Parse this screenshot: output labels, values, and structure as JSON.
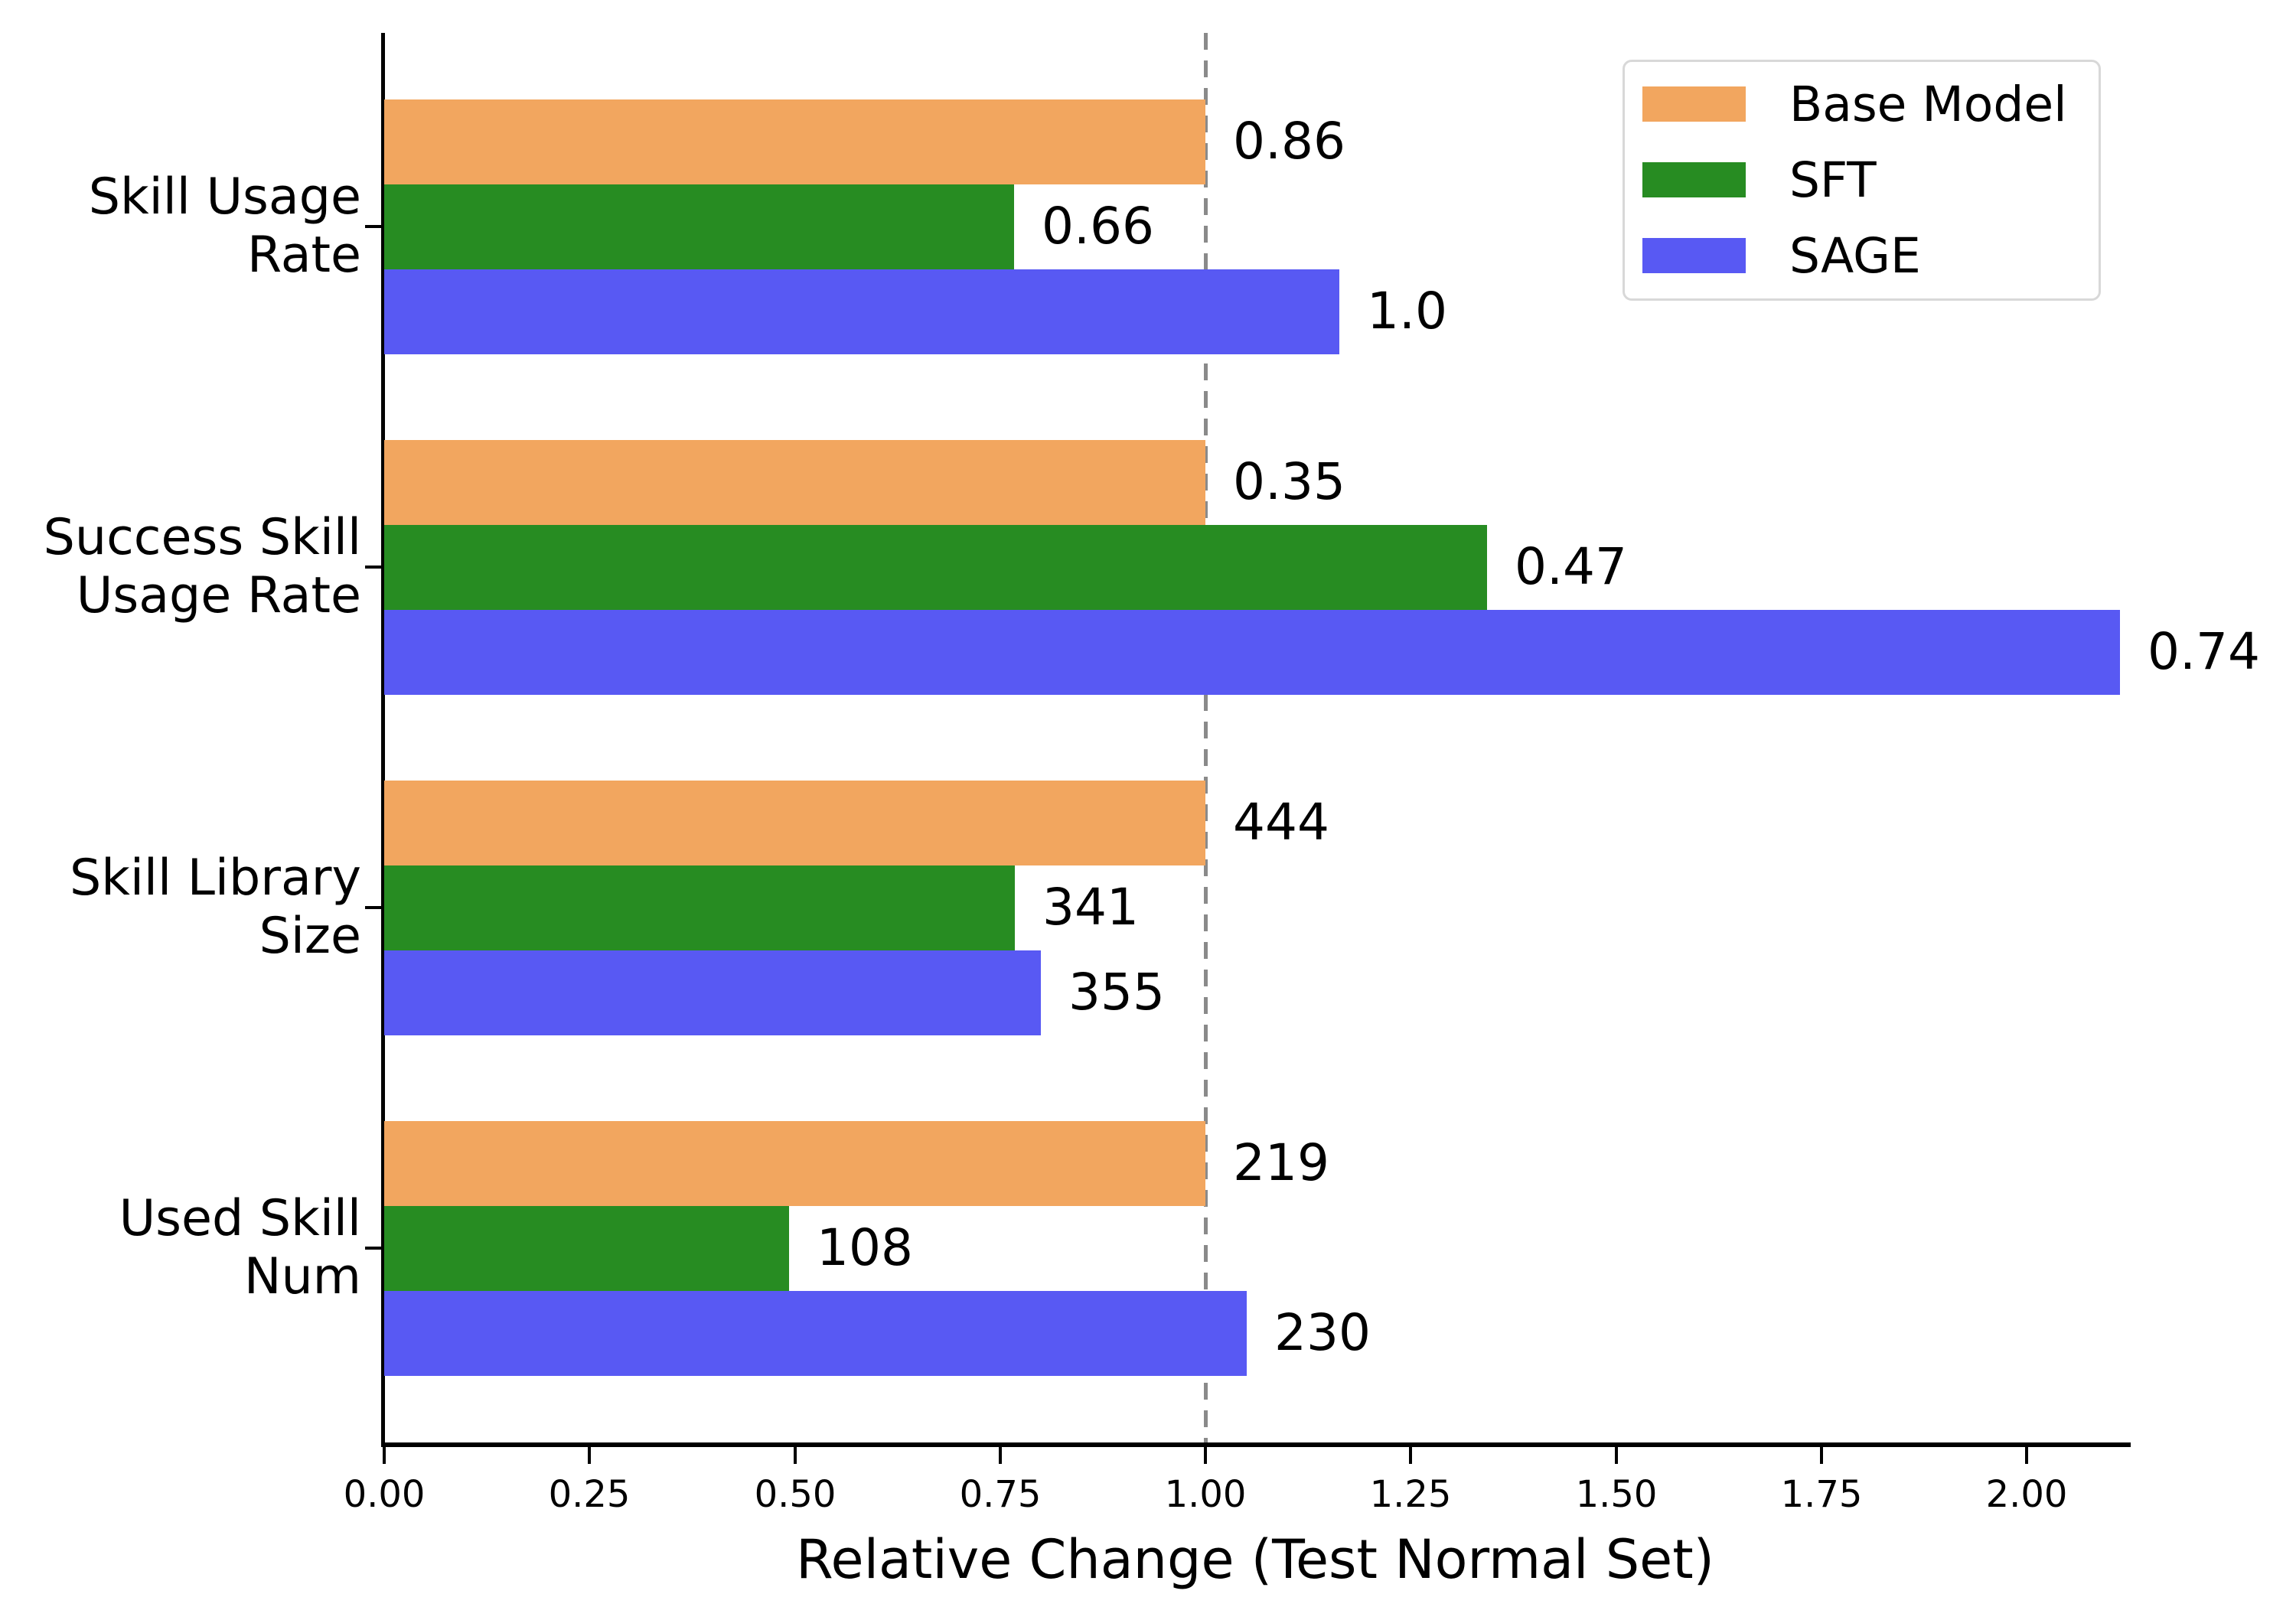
{
  "chart_data": {
    "type": "bar",
    "orientation": "horizontal",
    "xlabel": "Relative Change (Test Normal Set)",
    "xlim": [
      0,
      2.12
    ],
    "grid": "off",
    "background": "#FFFFFF",
    "text_color": "#000000",
    "categories": [
      "Skill Usage Rate",
      "Success Skill Usage Rate",
      "Skill Library Size",
      "Used Skill Num"
    ],
    "category_label_lines": [
      [
        "Skill Usage",
        "Rate"
      ],
      [
        "Success Skill",
        "Usage Rate"
      ],
      [
        "Skill Library",
        "Size"
      ],
      [
        "Used Skill",
        "Num"
      ]
    ],
    "x_ticks": {
      "values": [
        0,
        0.25,
        0.5,
        0.75,
        1.0,
        1.25,
        1.5,
        1.75,
        2.0
      ],
      "labels": [
        "0.00",
        "0.25",
        "0.50",
        "0.75",
        "1.00",
        "1.25",
        "1.50",
        "1.75",
        "2.00"
      ]
    },
    "series": [
      {
        "name": "Base Model",
        "color": "#F2A65F",
        "relative_change": [
          1.0,
          1.0,
          1.0,
          1.0
        ],
        "value_labels": [
          "0.86",
          "0.35",
          "444",
          "219"
        ]
      },
      {
        "name": "SFT",
        "color": "#278C22",
        "relative_change": [
          0.767,
          1.343,
          0.768,
          0.493
        ],
        "value_labels": [
          "0.66",
          "0.47",
          "341",
          "108"
        ]
      },
      {
        "name": "SAGE",
        "color": "#5859F3",
        "relative_change": [
          1.163,
          2.114,
          0.8,
          1.05
        ],
        "value_labels": [
          "1.0",
          "0.74",
          "355",
          "230"
        ]
      }
    ],
    "reference_line": {
      "value": 1.0,
      "style": "dashed",
      "color": "#8A8A8A"
    },
    "legend": {
      "position": "upper-right",
      "entries": [
        "Base Model",
        "SFT",
        "SAGE"
      ]
    }
  }
}
